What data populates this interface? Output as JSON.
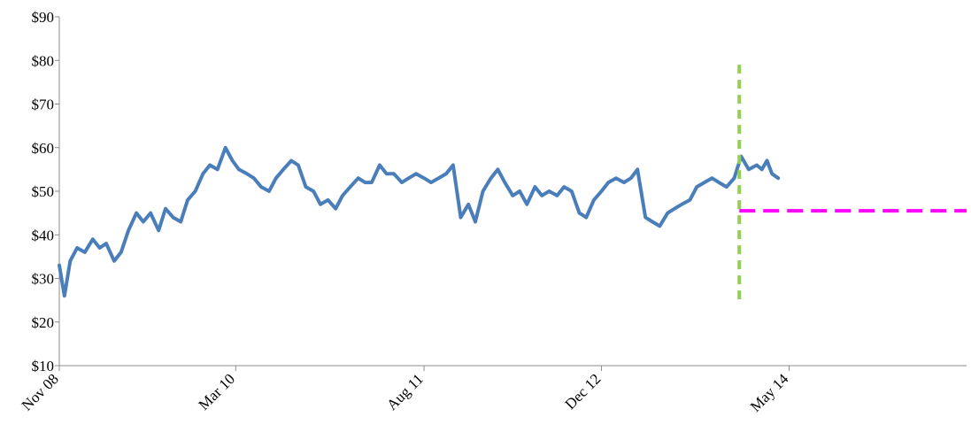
{
  "chart_data": {
    "type": "line",
    "title": "",
    "xlabel": "",
    "ylabel": "",
    "ylim": [
      10,
      90
    ],
    "yticks": [
      10,
      20,
      30,
      40,
      50,
      60,
      70,
      80,
      90
    ],
    "ytick_labels": [
      "$10",
      "$20",
      "$30",
      "$40",
      "$50",
      "$60",
      "$70",
      "$80",
      "$90"
    ],
    "xlim": [
      "2008-11-01",
      "2015-09-01"
    ],
    "xticks": [
      "2008-11-01",
      "2010-03-01",
      "2011-08-01",
      "2012-12-01",
      "2014-05-01"
    ],
    "xtick_labels": [
      "Nov 08",
      "Mar 10",
      "Aug 11",
      "Dec 12",
      "May 14"
    ],
    "grid": false,
    "legend": "none",
    "colors": {
      "price": "#4a7ebb",
      "vertical_marker": "#92d050",
      "horizontal_marker": "#ff00ff"
    },
    "series": [
      {
        "x": [
          "2008-11-01",
          "2008-11-15",
          "2008-12-01",
          "2008-12-20",
          "2009-01-10",
          "2009-02-01",
          "2009-02-20",
          "2009-03-10",
          "2009-04-01",
          "2009-04-20",
          "2009-05-10",
          "2009-06-01",
          "2009-06-20",
          "2009-07-10",
          "2009-08-01",
          "2009-08-20",
          "2009-09-10",
          "2009-10-01",
          "2009-10-20",
          "2009-11-10",
          "2009-12-01",
          "2009-12-20",
          "2010-01-10",
          "2010-02-01",
          "2010-02-20",
          "2010-03-10",
          "2010-04-01",
          "2010-04-20",
          "2010-05-10",
          "2010-06-01",
          "2010-06-20",
          "2010-07-10",
          "2010-08-01",
          "2010-08-20",
          "2010-09-10",
          "2010-10-01",
          "2010-10-20",
          "2010-11-10",
          "2010-12-01",
          "2010-12-20",
          "2011-01-10",
          "2011-02-01",
          "2011-02-20",
          "2011-03-10",
          "2011-04-01",
          "2011-04-20",
          "2011-05-10",
          "2011-06-01",
          "2011-06-20",
          "2011-07-10",
          "2011-08-01",
          "2011-08-20",
          "2011-09-10",
          "2011-10-01",
          "2011-10-20",
          "2011-11-10",
          "2011-12-01",
          "2011-12-20",
          "2012-01-10",
          "2012-02-01",
          "2012-02-20",
          "2012-03-10",
          "2012-04-01",
          "2012-04-20",
          "2012-05-10",
          "2012-06-01",
          "2012-06-20",
          "2012-07-10",
          "2012-08-01",
          "2012-08-20",
          "2012-09-10",
          "2012-10-01",
          "2012-10-20",
          "2012-11-10",
          "2012-12-01",
          "2012-12-20",
          "2013-01-10",
          "2013-02-01",
          "2013-02-20",
          "2013-03-10",
          "2013-04-01",
          "2013-04-20",
          "2013-05-10",
          "2013-06-01",
          "2013-06-20",
          "2013-07-10",
          "2013-08-01",
          "2013-08-20",
          "2013-09-10",
          "2013-10-01",
          "2013-10-20",
          "2013-11-10",
          "2013-12-01",
          "2013-12-20",
          "2014-01-10",
          "2014-02-01"
        ],
        "values": [
          33,
          26,
          34,
          37,
          36,
          39,
          37,
          38,
          34,
          36,
          41,
          45,
          43,
          45,
          41,
          46,
          44,
          43,
          48,
          50,
          54,
          56,
          55,
          60,
          57,
          55,
          54,
          53,
          51,
          50,
          53,
          55,
          57,
          56,
          51,
          50,
          47,
          48,
          46,
          49,
          51,
          53,
          52,
          52,
          56,
          54,
          54,
          52,
          53,
          54,
          53,
          52,
          53,
          54,
          56,
          44,
          47,
          43,
          50,
          53,
          55,
          52,
          49,
          50,
          47,
          51,
          49,
          50,
          49,
          51,
          50,
          45,
          44,
          48,
          50,
          52,
          53,
          52,
          53,
          55,
          44,
          43,
          42,
          45,
          46,
          47,
          48,
          51,
          52,
          53,
          52,
          51,
          53,
          58,
          55,
          56
        ]
      }
    ],
    "series_tail": {
      "x": [
        "2014-02-15",
        "2014-03-01",
        "2014-03-15",
        "2014-04-01"
      ],
      "values": [
        55,
        57,
        54,
        53
      ]
    },
    "vertical_marker": {
      "x": "2013-12-15",
      "y_from": 25,
      "y_to": 79
    },
    "horizontal_marker": {
      "y": 45.5,
      "x_from": "2013-12-15",
      "x_to": "2015-09-01"
    }
  }
}
